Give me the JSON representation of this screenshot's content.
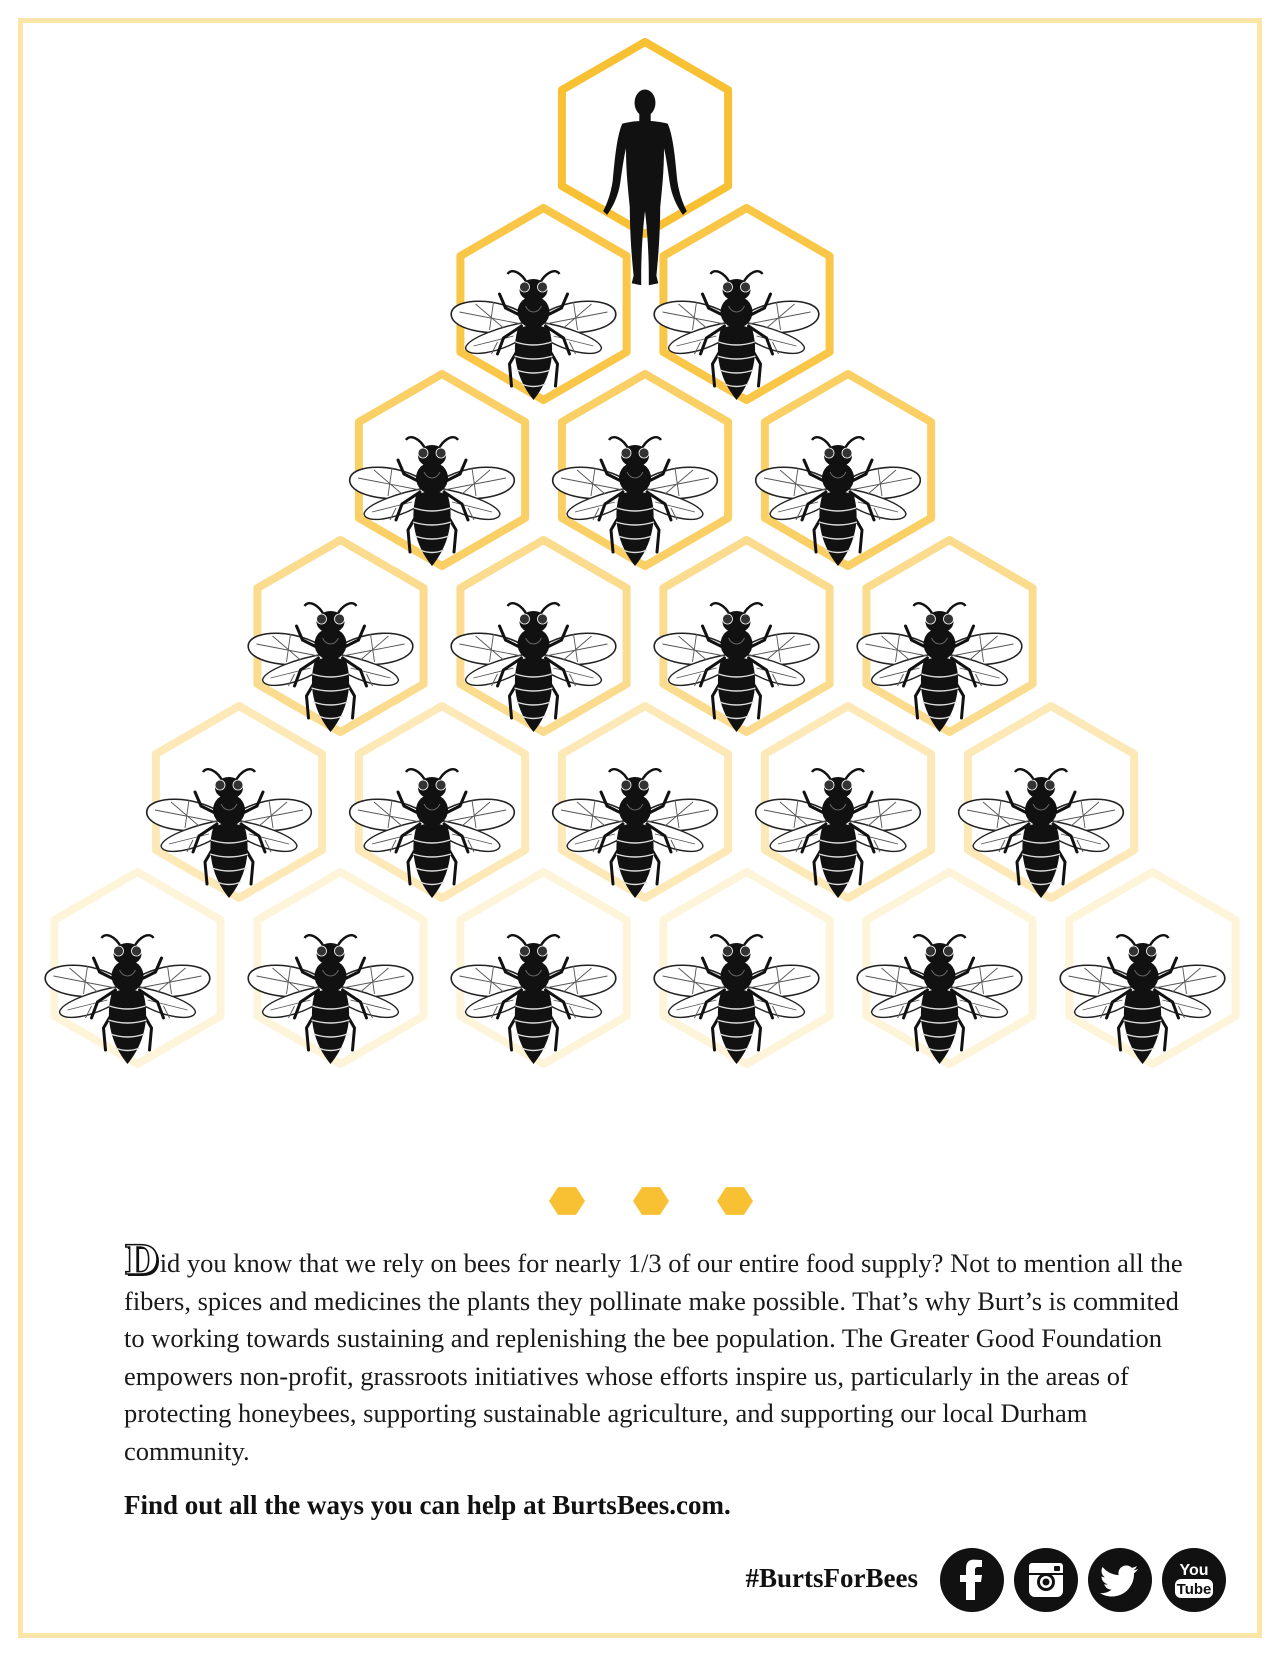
{
  "colors": {
    "honey": "#f8c033",
    "frame": "#fbe6a8",
    "ink": "#111111"
  },
  "illustration": {
    "top_figure": "human-silhouette-icon",
    "cell_figure": "bee-icon",
    "rows": [
      {
        "cells": 1,
        "figure": "human"
      },
      {
        "cells": 2,
        "figure": "bee"
      },
      {
        "cells": 3,
        "figure": "bee"
      },
      {
        "cells": 4,
        "figure": "bee"
      },
      {
        "cells": 5,
        "figure": "bee"
      },
      {
        "cells": 6,
        "figure": "bee"
      }
    ]
  },
  "body": {
    "drop_cap": "D",
    "text": "id you know that we rely on bees for nearly 1/3 of  our entire food supply? Not to mention all the fibers, spices and medicines the plants they pollinate make possible. That’s why Burt’s is commited to working towards sustaining and  replenishing  the bee population. The Greater Good Foundation empowers non-profit, grassroots initiatives whose efforts inspire us, particularly in the areas of  protecting honeybees, supporting sustainable agriculture, and supporting our local Durham community."
  },
  "cta": "Find out all the ways you can help at BurtsBees.com.",
  "hashtag": "#BurtsForBees",
  "social": [
    {
      "name": "facebook",
      "icon": "facebook-icon"
    },
    {
      "name": "instagram",
      "icon": "instagram-icon"
    },
    {
      "name": "twitter",
      "icon": "twitter-icon"
    },
    {
      "name": "youtube",
      "icon": "youtube-icon",
      "label_top": "You",
      "label_bottom": "Tube"
    }
  ]
}
